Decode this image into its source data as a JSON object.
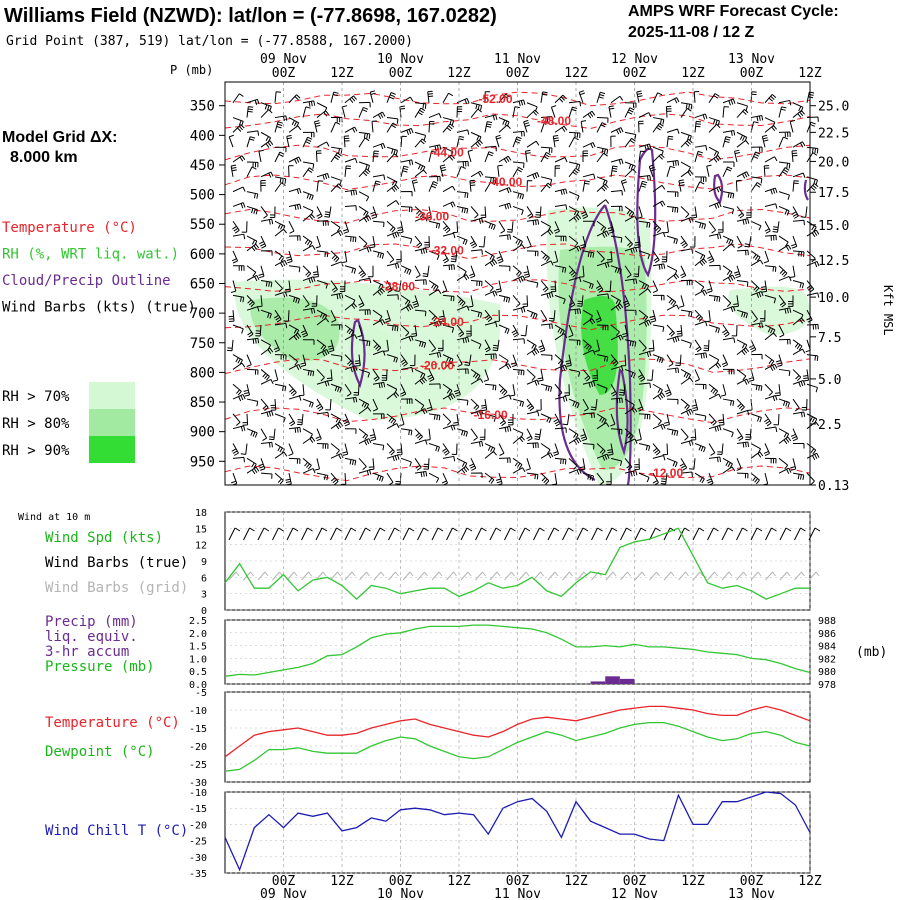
{
  "header": {
    "title": "Williams Field (NZWD):  lat/lon = (-77.8698, 167.0282)",
    "subtitle": "Grid Point (387, 519) lat/lon = (-77.8588, 167.2000)",
    "cycle_line1": "AMPS WRF Forecast Cycle:",
    "cycle_line2": "2025-11-08 / 12  Z"
  },
  "left_panel": {
    "grid_label": "Model Grid ΔX:",
    "grid_value": "8.000 km",
    "legend": [
      {
        "text": "Temperature (°C)",
        "color": "#e8242a"
      },
      {
        "text": "RH (%, WRT liq. wat.)",
        "color": "#33c633"
      },
      {
        "text": "Cloud/Precip Outline",
        "color": "#6a2c91"
      },
      {
        "text": "Wind Barbs (kts) (true)",
        "color": "#000000"
      }
    ],
    "rh_legend": [
      {
        "text": "RH > 70%",
        "color": "#d4f8d4"
      },
      {
        "text": "RH > 80%",
        "color": "#a2eaa2"
      },
      {
        "text": "RH > 90%",
        "color": "#33dd33"
      }
    ]
  },
  "time_axis": {
    "day_labels": [
      {
        "hour": 12,
        "text": "09 Nov"
      },
      {
        "hour": 36,
        "text": "10 Nov"
      },
      {
        "hour": 60,
        "text": "11 Nov"
      },
      {
        "hour": 84,
        "text": "12 Nov"
      },
      {
        "hour": 108,
        "text": "13 Nov"
      }
    ],
    "ticks": [
      {
        "hour": 12,
        "text": "00Z"
      },
      {
        "hour": 24,
        "text": "12Z"
      },
      {
        "hour": 36,
        "text": "00Z"
      },
      {
        "hour": 48,
        "text": "12Z"
      },
      {
        "hour": 60,
        "text": "00Z"
      },
      {
        "hour": 72,
        "text": "12Z"
      },
      {
        "hour": 84,
        "text": "00Z"
      },
      {
        "hour": 96,
        "text": "12Z"
      },
      {
        "hour": 108,
        "text": "00Z"
      },
      {
        "hour": 120,
        "text": "12Z"
      }
    ]
  },
  "chart_data": [
    {
      "type": "heatmap",
      "panel": "cross_section",
      "x_range_hours": [
        0,
        120
      ],
      "y_unit_label": "P (mb)",
      "y_range_mb": [
        310,
        990
      ],
      "y_ticks_mb": [
        350,
        400,
        450,
        500,
        550,
        600,
        650,
        700,
        750,
        800,
        850,
        900,
        950
      ],
      "height_axis_label": "Kft MSL",
      "height_ticks": [
        {
          "p": 350,
          "label": "25.0"
        },
        {
          "p": 395,
          "label": "22.5"
        },
        {
          "p": 444,
          "label": "20.0"
        },
        {
          "p": 496,
          "label": "17.5"
        },
        {
          "p": 551,
          "label": "15.0"
        },
        {
          "p": 610,
          "label": "12.5"
        },
        {
          "p": 673,
          "label": "10.0"
        },
        {
          "p": 740,
          "label": "7.5"
        },
        {
          "p": 811,
          "label": "5.0"
        },
        {
          "p": 887,
          "label": "2.5"
        },
        {
          "p": 990,
          "label": "0.13"
        }
      ],
      "temperature_labels": [
        {
          "hour": 52,
          "p": 337,
          "text": "-52.00"
        },
        {
          "hour": 64,
          "p": 374,
          "text": "-48.00"
        },
        {
          "hour": 42,
          "p": 427,
          "text": "-44.00"
        },
        {
          "hour": 54,
          "p": 477,
          "text": "-40.00"
        },
        {
          "hour": 39,
          "p": 535,
          "text": "-36.00"
        },
        {
          "hour": 42,
          "p": 593,
          "text": "-32.00"
        },
        {
          "hour": 32,
          "p": 653,
          "text": "-28.00"
        },
        {
          "hour": 42,
          "p": 713,
          "text": "-24.00"
        },
        {
          "hour": 40,
          "p": 787,
          "text": "-20.00"
        },
        {
          "hour": 51,
          "p": 870,
          "text": "-16.00"
        },
        {
          "hour": 87,
          "p": 968,
          "text": "-12.00"
        }
      ],
      "temperature_isotherms_c": [
        -52,
        -48,
        -44,
        -40,
        -36,
        -32,
        -28,
        -24,
        -20,
        -16,
        -12
      ]
    },
    {
      "type": "line",
      "panel": "wind",
      "title": "Wind at 10 m",
      "ylim": [
        0,
        18
      ],
      "y_ticks": [
        0,
        3,
        6,
        9,
        12,
        15,
        18
      ],
      "legend": [
        {
          "text": "Wind Spd (kts)",
          "color": "#1bb51b"
        },
        {
          "text": "Wind Barbs (true)",
          "color": "#000000"
        },
        {
          "text": "Wind Barbs (grid)",
          "color": "#b4b4b4"
        }
      ],
      "series": [
        {
          "name": "Wind Spd (kts)",
          "color": "#33c633",
          "x": [
            0,
            3,
            6,
            9,
            12,
            15,
            18,
            21,
            24,
            27,
            30,
            33,
            36,
            39,
            42,
            45,
            48,
            51,
            54,
            57,
            60,
            63,
            66,
            69,
            72,
            75,
            78,
            81,
            84,
            87,
            90,
            93,
            96,
            99,
            102,
            105,
            108,
            111,
            114,
            117,
            120
          ],
          "y": [
            5,
            8.5,
            4,
            4,
            6.5,
            3.5,
            5.5,
            6,
            4.5,
            2,
            4.5,
            4,
            3,
            3.5,
            4,
            4,
            2.5,
            3.5,
            5,
            4,
            4.5,
            6,
            3.5,
            2.5,
            5,
            7,
            6.5,
            11.5,
            12.5,
            13,
            14,
            15,
            10,
            5,
            4,
            4.5,
            3.5,
            2,
            3,
            4,
            4
          ]
        }
      ]
    },
    {
      "type": "line",
      "panel": "precip_pressure",
      "legend": [
        {
          "text": "Precip (mm)",
          "color": "#6a2c91"
        },
        {
          "text": "liq. equiv.",
          "color": "#6a2c91"
        },
        {
          "text": "3-hr accum",
          "color": "#6a2c91"
        },
        {
          "text": "Pressure (mb)",
          "color": "#1bb51b"
        }
      ],
      "left_ylim": [
        0,
        2.5
      ],
      "left_ticks": [
        "0.0",
        "0.5",
        "1.0",
        "1.5",
        "2.0",
        "2.5"
      ],
      "right_ylim": [
        978,
        988
      ],
      "right_ticks": [
        "978",
        "980",
        "982",
        "984",
        "986",
        "988"
      ],
      "right_unit": "(mb)",
      "precip_bars": [
        {
          "x0": 75,
          "x1": 78,
          "value": 0.1
        },
        {
          "x0": 78,
          "x1": 81,
          "value": 0.3
        },
        {
          "x0": 81,
          "x1": 84,
          "value": 0.2
        }
      ],
      "series": [
        {
          "name": "Pressure (mb)",
          "color": "#33c633",
          "x": [
            0,
            3,
            6,
            9,
            12,
            15,
            18,
            21,
            24,
            27,
            30,
            33,
            36,
            39,
            42,
            45,
            48,
            51,
            54,
            57,
            60,
            63,
            66,
            69,
            72,
            75,
            78,
            81,
            84,
            87,
            90,
            93,
            96,
            99,
            102,
            105,
            108,
            111,
            114,
            117,
            120
          ],
          "y": [
            979.2,
            979.5,
            979.4,
            979.8,
            980.2,
            980.6,
            981.2,
            982.4,
            982.6,
            983.8,
            985.2,
            985.8,
            986.0,
            986.6,
            987.0,
            987.0,
            987.0,
            987.2,
            987.2,
            987.0,
            986.8,
            986.6,
            986.0,
            985.0,
            983.8,
            983.8,
            984.0,
            983.8,
            984.2,
            983.8,
            983.8,
            983.6,
            983.4,
            983.0,
            982.8,
            982.6,
            982.0,
            981.8,
            981.2,
            980.4,
            979.8
          ]
        }
      ]
    },
    {
      "type": "line",
      "panel": "temperature_dewpoint",
      "ylim": [
        -30,
        -5
      ],
      "y_ticks": [
        -30,
        -25,
        -20,
        -15,
        -10,
        -5
      ],
      "legend": [
        {
          "text": "Temperature (°C)",
          "color": "#e8242a"
        },
        {
          "text": "Dewpoint (°C)",
          "color": "#1bb51b"
        }
      ],
      "series": [
        {
          "name": "Temperature (°C)",
          "color": "#e8242a",
          "x": [
            0,
            3,
            6,
            9,
            12,
            15,
            18,
            21,
            24,
            27,
            30,
            33,
            36,
            39,
            42,
            45,
            48,
            51,
            54,
            57,
            60,
            63,
            66,
            69,
            72,
            75,
            78,
            81,
            84,
            87,
            90,
            93,
            96,
            99,
            102,
            105,
            108,
            111,
            114,
            117,
            120
          ],
          "y": [
            -23,
            -20,
            -17,
            -16,
            -15.5,
            -15,
            -16,
            -17,
            -17,
            -16.5,
            -15,
            -14,
            -13,
            -12.5,
            -14,
            -15,
            -16,
            -17,
            -17.5,
            -16,
            -14,
            -12.5,
            -12,
            -12.5,
            -13,
            -12,
            -11,
            -10,
            -9.5,
            -9,
            -9,
            -9.5,
            -10,
            -11,
            -11.5,
            -11.5,
            -10,
            -9,
            -10,
            -11.5,
            -13
          ]
        },
        {
          "name": "Dewpoint (°C)",
          "color": "#33c633",
          "x": [
            0,
            3,
            6,
            9,
            12,
            15,
            18,
            21,
            24,
            27,
            30,
            33,
            36,
            39,
            42,
            45,
            48,
            51,
            54,
            57,
            60,
            63,
            66,
            69,
            72,
            75,
            78,
            81,
            84,
            87,
            90,
            93,
            96,
            99,
            102,
            105,
            108,
            111,
            114,
            117,
            120
          ],
          "y": [
            -27,
            -26.5,
            -24,
            -21,
            -21,
            -20.5,
            -21.5,
            -22,
            -22,
            -22,
            -20,
            -18.5,
            -17.5,
            -18,
            -20,
            -21.5,
            -23,
            -23.5,
            -23,
            -21,
            -19,
            -17.5,
            -16,
            -17,
            -18.5,
            -17.5,
            -16.5,
            -15,
            -14,
            -13.5,
            -13.5,
            -14.5,
            -16,
            -17.5,
            -18.5,
            -18,
            -16.5,
            -16,
            -17,
            -19,
            -20
          ]
        }
      ]
    },
    {
      "type": "line",
      "panel": "wind_chill",
      "ylim": [
        -35,
        -10
      ],
      "y_ticks": [
        -35,
        -30,
        -25,
        -20,
        -15,
        -10
      ],
      "legend": [
        {
          "text": "Wind Chill T (°C)",
          "color": "#1c1cb3"
        }
      ],
      "series": [
        {
          "name": "Wind Chill T (°C)",
          "color": "#1c1cb3",
          "x": [
            0,
            3,
            6,
            9,
            12,
            15,
            18,
            21,
            24,
            27,
            30,
            33,
            36,
            39,
            42,
            45,
            48,
            51,
            54,
            57,
            60,
            63,
            66,
            69,
            72,
            75,
            78,
            81,
            84,
            87,
            90,
            93,
            96,
            99,
            102,
            105,
            108,
            111,
            114,
            117,
            120
          ],
          "y": [
            -24,
            -34,
            -21,
            -17,
            -21,
            -16.5,
            -17.5,
            -16.5,
            -22,
            -21,
            -18,
            -19,
            -15.5,
            -15,
            -15.5,
            -17,
            -16.5,
            -17,
            -23,
            -15,
            -13,
            -12,
            -16,
            -24,
            -13,
            -19,
            -21,
            -23,
            -23,
            -24.5,
            -25,
            -11,
            -20,
            -20,
            -13,
            -13,
            -11.5,
            -10,
            -10.5,
            -14,
            -22.5
          ]
        }
      ]
    }
  ]
}
